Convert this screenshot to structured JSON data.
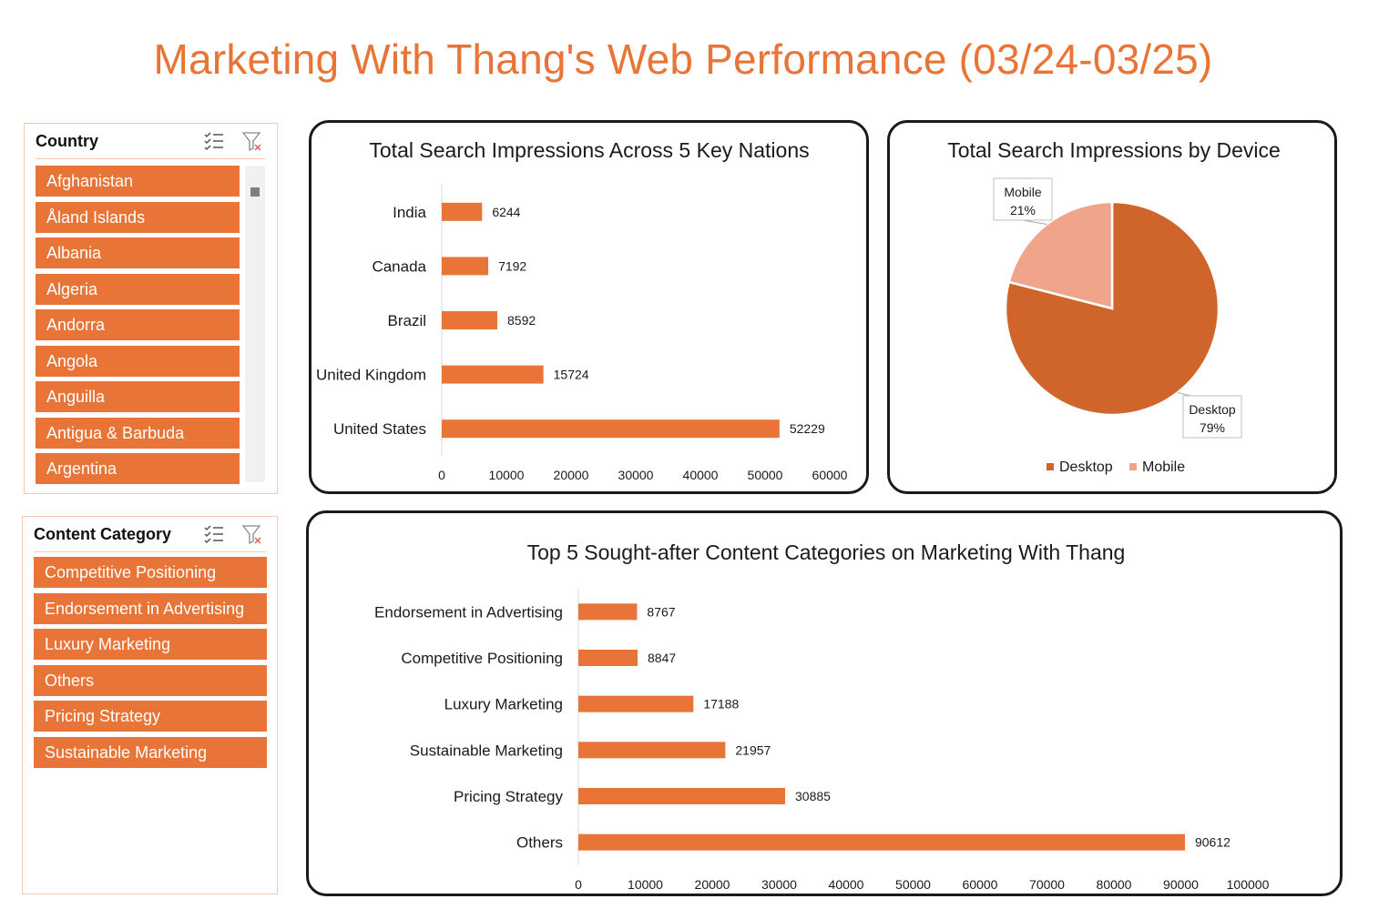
{
  "page_title": "Marketing With Thang's Web Performance (03/24-03/25)",
  "colors": {
    "accent": "#e87537",
    "desktop": "#d0652c",
    "mobile": "#f0a489",
    "slicer_border": "#f3c9b0"
  },
  "country_slicer": {
    "title": "Country",
    "items": [
      "Afghanistan",
      "Åland Islands",
      "Albania",
      "Algeria",
      "Andorra",
      "Angola",
      "Anguilla",
      "Antigua & Barbuda",
      "Argentina"
    ]
  },
  "content_slicer": {
    "title": "Content Category",
    "items": [
      "Competitive Positioning",
      "Endorsement in Advertising",
      "Luxury Marketing",
      "Others",
      "Pricing Strategy",
      "Sustainable Marketing"
    ]
  },
  "chart_data": [
    {
      "type": "bar",
      "orientation": "horizontal",
      "title": "Total Search Impressions Across 5 Key Nations",
      "categories": [
        "India",
        "Canada",
        "Brazil",
        "United Kingdom",
        "United States"
      ],
      "values": [
        6244,
        7192,
        8592,
        15724,
        52229
      ],
      "xlim": [
        0,
        60000
      ],
      "ticks": [
        "0",
        "10000",
        "20000",
        "30000",
        "40000",
        "50000",
        "60000"
      ],
      "grid": false
    },
    {
      "type": "pie",
      "title": "Total Search Impressions by Device",
      "slices": [
        {
          "name": "Desktop",
          "value": 79,
          "label": "Desktop",
          "pct": "79%"
        },
        {
          "name": "Mobile",
          "value": 21,
          "label": "Mobile",
          "pct": "21%"
        }
      ],
      "legend": "bottom"
    },
    {
      "type": "bar",
      "orientation": "horizontal",
      "title": "Top 5 Sought-after Content Categories on Marketing With Thang",
      "categories": [
        "Endorsement in Advertising",
        "Competitive Positioning",
        "Luxury Marketing",
        "Sustainable Marketing",
        "Pricing Strategy",
        "Others"
      ],
      "values": [
        8767,
        8847,
        17188,
        21957,
        30885,
        90612
      ],
      "xlim": [
        0,
        100000
      ],
      "ticks": [
        "0",
        "10000",
        "20000",
        "30000",
        "40000",
        "50000",
        "60000",
        "70000",
        "80000",
        "90000",
        "100000"
      ],
      "grid": false
    }
  ]
}
